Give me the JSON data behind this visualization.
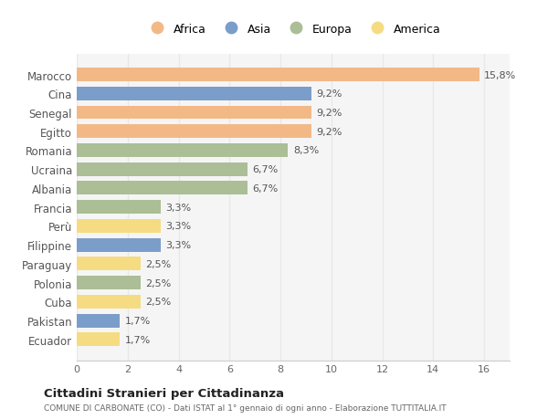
{
  "countries": [
    "Marocco",
    "Cina",
    "Senegal",
    "Egitto",
    "Romania",
    "Ucraina",
    "Albania",
    "Francia",
    "Perù",
    "Filippine",
    "Paraguay",
    "Polonia",
    "Cuba",
    "Pakistan",
    "Ecuador"
  ],
  "values": [
    15.8,
    9.2,
    9.2,
    9.2,
    8.3,
    6.7,
    6.7,
    3.3,
    3.3,
    3.3,
    2.5,
    2.5,
    2.5,
    1.7,
    1.7
  ],
  "labels": [
    "15,8%",
    "9,2%",
    "9,2%",
    "9,2%",
    "8,3%",
    "6,7%",
    "6,7%",
    "3,3%",
    "3,3%",
    "3,3%",
    "2,5%",
    "2,5%",
    "2,5%",
    "1,7%",
    "1,7%"
  ],
  "colors": [
    "#F2B987",
    "#7B9DC9",
    "#F2B987",
    "#F2B987",
    "#ABBE96",
    "#ABBE96",
    "#ABBE96",
    "#ABBE96",
    "#F5DC82",
    "#7B9DC9",
    "#F5DC82",
    "#ABBE96",
    "#F5DC82",
    "#7B9DC9",
    "#F5DC82"
  ],
  "legend_labels": [
    "Africa",
    "Asia",
    "Europa",
    "America"
  ],
  "legend_colors": [
    "#F2B987",
    "#7B9DC9",
    "#ABBE96",
    "#F5DC82"
  ],
  "title": "Cittadini Stranieri per Cittadinanza",
  "subtitle": "COMUNE DI CARBONATE (CO) - Dati ISTAT al 1° gennaio di ogni anno - Elaborazione TUTTITALIA.IT",
  "xlim": [
    0,
    17
  ],
  "xticks": [
    0,
    2,
    4,
    6,
    8,
    10,
    12,
    14,
    16
  ],
  "bg_color": "#ffffff",
  "plot_bg_color": "#f5f5f5",
  "grid_color": "#e8e8e8",
  "bar_height": 0.72
}
